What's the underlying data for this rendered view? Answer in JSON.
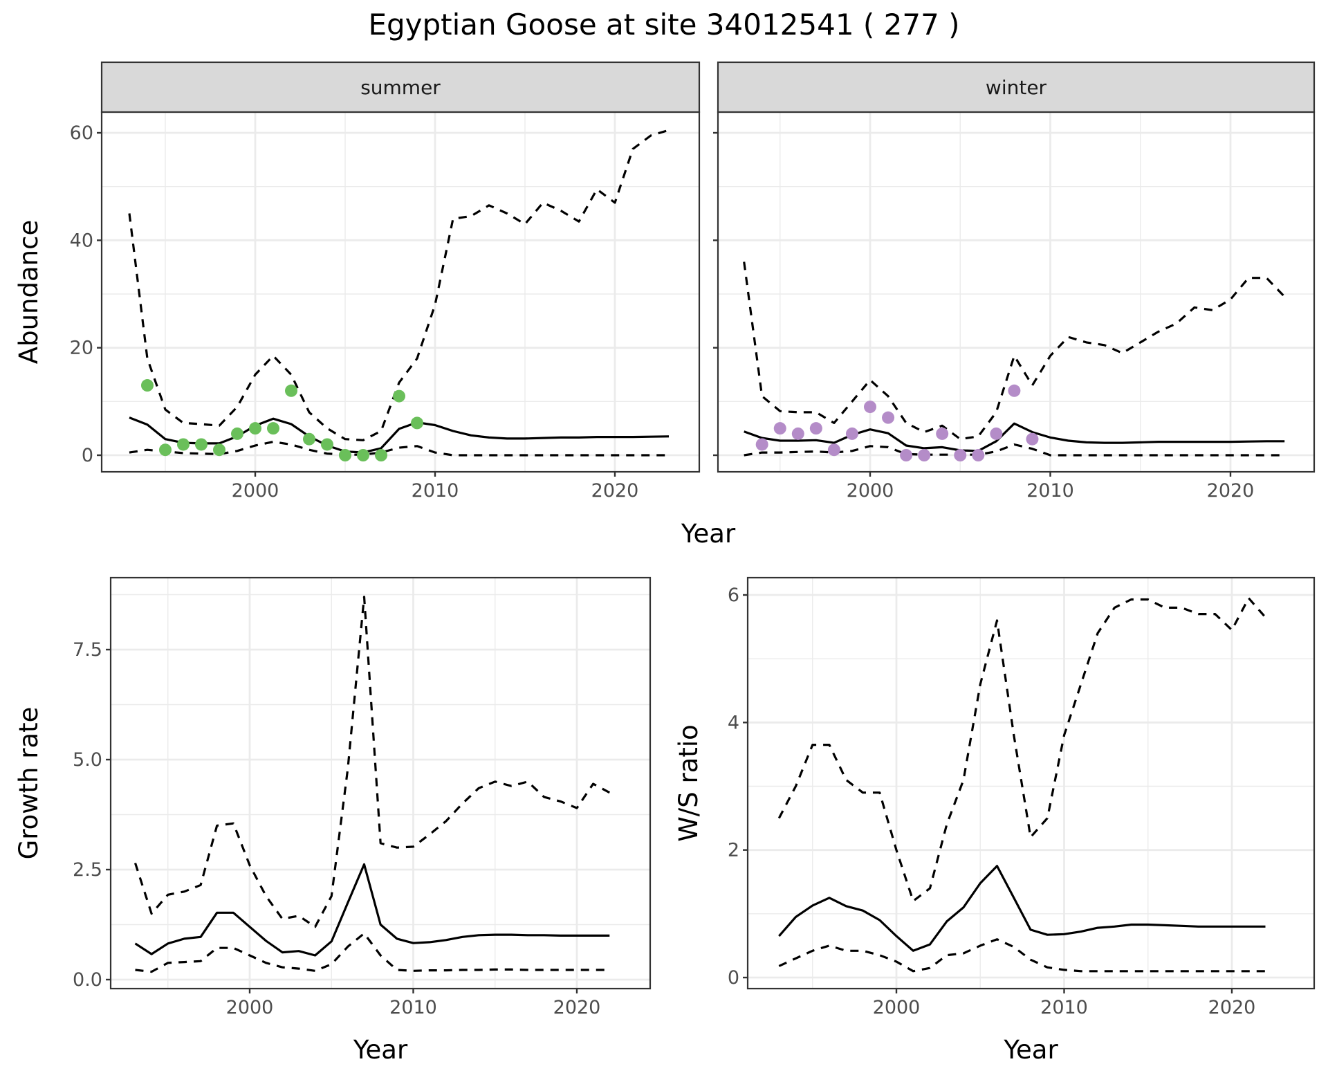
{
  "title": "Egyptian Goose at site 34012541 ( 277 )",
  "colors": {
    "summer_points": "#6abf5a",
    "winter_points": "#b48cc8",
    "lines": "#000000",
    "grid": "#ebebeb",
    "strip": "#d9d9d9"
  },
  "chart_data": [
    {
      "type": "line",
      "facet": "summer",
      "xlabel": "Year",
      "ylabel": "Abundance",
      "ylim": [
        0,
        63
      ],
      "yticks": [
        0,
        20,
        40,
        60
      ],
      "xticks": [
        2000,
        2010,
        2020
      ],
      "grid": true,
      "x": [
        1993,
        1994,
        1995,
        1996,
        1997,
        1998,
        1999,
        2000,
        2001,
        2002,
        2003,
        2004,
        2005,
        2006,
        2007,
        2008,
        2009,
        2010,
        2011,
        2012,
        2013,
        2014,
        2015,
        2016,
        2017,
        2018,
        2019,
        2020,
        2021,
        2022,
        2023
      ],
      "series": [
        {
          "style": "solid",
          "values": [
            7,
            5.7,
            3,
            2.3,
            2.2,
            2.2,
            3.5,
            5.5,
            6.8,
            5.8,
            3.5,
            1.8,
            0.7,
            0.5,
            1.3,
            4.9,
            6.1,
            5.6,
            4.5,
            3.7,
            3.3,
            3.1,
            3.1,
            3.2,
            3.3,
            3.3,
            3.4,
            3.4,
            3.4,
            3.45,
            3.5
          ]
        },
        {
          "style": "dashed",
          "values": [
            45,
            18,
            8.5,
            6,
            5.8,
            5.5,
            9,
            15,
            18.5,
            15,
            8,
            5,
            3,
            2.8,
            4.5,
            13.5,
            18,
            28,
            44,
            44.5,
            46.5,
            45,
            43,
            47,
            45.5,
            43.5,
            49.5,
            47,
            57,
            59.5,
            60.5
          ]
        },
        {
          "style": "dashed",
          "values": [
            0.5,
            1,
            0.7,
            0.4,
            0.3,
            0.2,
            0.8,
            1.8,
            2.5,
            2,
            1,
            0.3,
            0.1,
            0.1,
            0.5,
            1.4,
            1.7,
            0.5,
            0,
            0,
            0,
            0,
            0,
            0,
            0,
            0,
            0,
            0,
            0,
            0,
            0
          ]
        }
      ],
      "points": {
        "x": [
          1994,
          1995,
          1996,
          1997,
          1998,
          1999,
          2000,
          2001,
          2002,
          2003,
          2004,
          2005,
          2006,
          2007,
          2008,
          2009
        ],
        "y": [
          13,
          1,
          2,
          2,
          1,
          4,
          5,
          5,
          12,
          3,
          2,
          0,
          0,
          0,
          11,
          6
        ]
      }
    },
    {
      "type": "line",
      "facet": "winter",
      "xlabel": "Year",
      "ylabel": "Abundance",
      "ylim": [
        0,
        63
      ],
      "yticks": [
        0,
        20,
        40,
        60
      ],
      "xticks": [
        2000,
        2010,
        2020
      ],
      "grid": true,
      "x": [
        1993,
        1994,
        1995,
        1996,
        1997,
        1998,
        1999,
        2000,
        2001,
        2002,
        2003,
        2004,
        2005,
        2006,
        2007,
        2008,
        2009,
        2010,
        2011,
        2012,
        2013,
        2014,
        2015,
        2016,
        2017,
        2018,
        2019,
        2020,
        2021,
        2022,
        2023
      ],
      "series": [
        {
          "style": "solid",
          "values": [
            4.4,
            3.2,
            2.7,
            2.7,
            2.8,
            2.3,
            3.8,
            4.8,
            4.1,
            1.8,
            1.3,
            1.5,
            0.9,
            0.8,
            2.6,
            5.9,
            4.3,
            3.3,
            2.7,
            2.4,
            2.3,
            2.3,
            2.4,
            2.5,
            2.5,
            2.5,
            2.5,
            2.5,
            2.55,
            2.6,
            2.6
          ]
        },
        {
          "style": "dashed",
          "values": [
            36,
            11,
            8.2,
            8,
            8,
            6,
            10,
            14,
            11,
            6,
            4.3,
            5.5,
            3,
            3.5,
            8,
            18.5,
            13,
            18.5,
            22,
            21,
            20.5,
            19,
            21,
            23,
            24.5,
            27.5,
            27,
            29,
            33,
            33,
            29.5
          ]
        },
        {
          "style": "dashed",
          "values": [
            0,
            0.5,
            0.5,
            0.6,
            0.7,
            0.5,
            0.8,
            1.7,
            1.5,
            0.2,
            0.1,
            0.1,
            0.1,
            0.1,
            0.7,
            2,
            1.2,
            0,
            0,
            0,
            0,
            0,
            0,
            0,
            0,
            0,
            0,
            0,
            0,
            0,
            0
          ]
        }
      ],
      "points": {
        "x": [
          1994,
          1995,
          1996,
          1997,
          1998,
          1999,
          2000,
          2001,
          2002,
          2003,
          2004,
          2005,
          2006,
          2007,
          2008,
          2009
        ],
        "y": [
          2,
          5,
          4,
          5,
          1,
          4,
          9,
          7,
          0,
          0,
          4,
          0,
          0,
          4,
          12,
          3
        ]
      }
    },
    {
      "type": "line",
      "xlabel": "Year",
      "ylabel": "Growth rate",
      "ylim": [
        -0.2,
        8.9
      ],
      "yticks": [
        0.0,
        2.5,
        5.0,
        7.5
      ],
      "ytick_labels": [
        "0.0",
        "2.5",
        "5.0",
        "7.5"
      ],
      "xticks": [
        2000,
        2010,
        2020
      ],
      "grid": true,
      "x": [
        1993,
        1994,
        1995,
        1996,
        1997,
        1998,
        1999,
        2000,
        2001,
        2002,
        2003,
        2004,
        2005,
        2006,
        2007,
        2008,
        2009,
        2010,
        2011,
        2012,
        2013,
        2014,
        2015,
        2016,
        2017,
        2018,
        2019,
        2020,
        2021,
        2022
      ],
      "series": [
        {
          "style": "solid",
          "values": [
            0.82,
            0.58,
            0.82,
            0.93,
            0.97,
            1.52,
            1.52,
            1.2,
            0.88,
            0.62,
            0.65,
            0.55,
            0.87,
            1.75,
            2.62,
            1.25,
            0.93,
            0.83,
            0.85,
            0.9,
            0.97,
            1.01,
            1.02,
            1.02,
            1.01,
            1.01,
            1.0,
            1.0,
            1.0,
            1.0
          ]
        },
        {
          "style": "dashed",
          "values": [
            2.65,
            1.5,
            1.93,
            2.0,
            2.15,
            3.5,
            3.55,
            2.6,
            1.9,
            1.38,
            1.45,
            1.2,
            1.9,
            4.8,
            8.7,
            3.1,
            3.0,
            3.02,
            3.3,
            3.6,
            4.0,
            4.35,
            4.5,
            4.4,
            4.5,
            4.15,
            4.05,
            3.9,
            4.45,
            4.25
          ]
        },
        {
          "style": "dashed",
          "values": [
            0.22,
            0.18,
            0.38,
            0.4,
            0.42,
            0.72,
            0.72,
            0.55,
            0.38,
            0.28,
            0.25,
            0.2,
            0.35,
            0.75,
            1.05,
            0.55,
            0.22,
            0.2,
            0.21,
            0.21,
            0.22,
            0.22,
            0.23,
            0.23,
            0.22,
            0.22,
            0.22,
            0.22,
            0.22,
            0.22
          ]
        }
      ]
    },
    {
      "type": "line",
      "xlabel": "Year",
      "ylabel": "W/S ratio",
      "ylim": [
        -0.1,
        6.3
      ],
      "yticks": [
        0,
        2,
        4,
        6
      ],
      "xticks": [
        2000,
        2010,
        2020
      ],
      "grid": true,
      "x": [
        1993,
        1994,
        1995,
        1996,
        1997,
        1998,
        1999,
        2000,
        2001,
        2002,
        2003,
        2004,
        2005,
        2006,
        2007,
        2008,
        2009,
        2010,
        2011,
        2012,
        2013,
        2014,
        2015,
        2016,
        2017,
        2018,
        2019,
        2020,
        2021,
        2022
      ],
      "series": [
        {
          "style": "solid",
          "values": [
            0.65,
            0.95,
            1.13,
            1.25,
            1.12,
            1.05,
            0.9,
            0.65,
            0.42,
            0.52,
            0.88,
            1.1,
            1.48,
            1.75,
            1.25,
            0.75,
            0.67,
            0.68,
            0.72,
            0.78,
            0.8,
            0.83,
            0.83,
            0.82,
            0.81,
            0.8,
            0.8,
            0.8,
            0.8,
            0.8
          ]
        },
        {
          "style": "dashed",
          "values": [
            2.5,
            3.0,
            3.65,
            3.65,
            3.1,
            2.9,
            2.9,
            2.0,
            1.2,
            1.4,
            2.4,
            3.1,
            4.6,
            5.6,
            3.8,
            2.2,
            2.5,
            3.8,
            4.6,
            5.4,
            5.8,
            5.93,
            5.93,
            5.8,
            5.8,
            5.7,
            5.7,
            5.45,
            5.95,
            5.65
          ]
        },
        {
          "style": "dashed",
          "values": [
            0.18,
            0.3,
            0.42,
            0.5,
            0.42,
            0.42,
            0.35,
            0.25,
            0.1,
            0.15,
            0.35,
            0.38,
            0.5,
            0.6,
            0.48,
            0.28,
            0.16,
            0.12,
            0.1,
            0.1,
            0.1,
            0.1,
            0.1,
            0.1,
            0.1,
            0.1,
            0.1,
            0.1,
            0.1,
            0.1
          ]
        }
      ]
    }
  ]
}
